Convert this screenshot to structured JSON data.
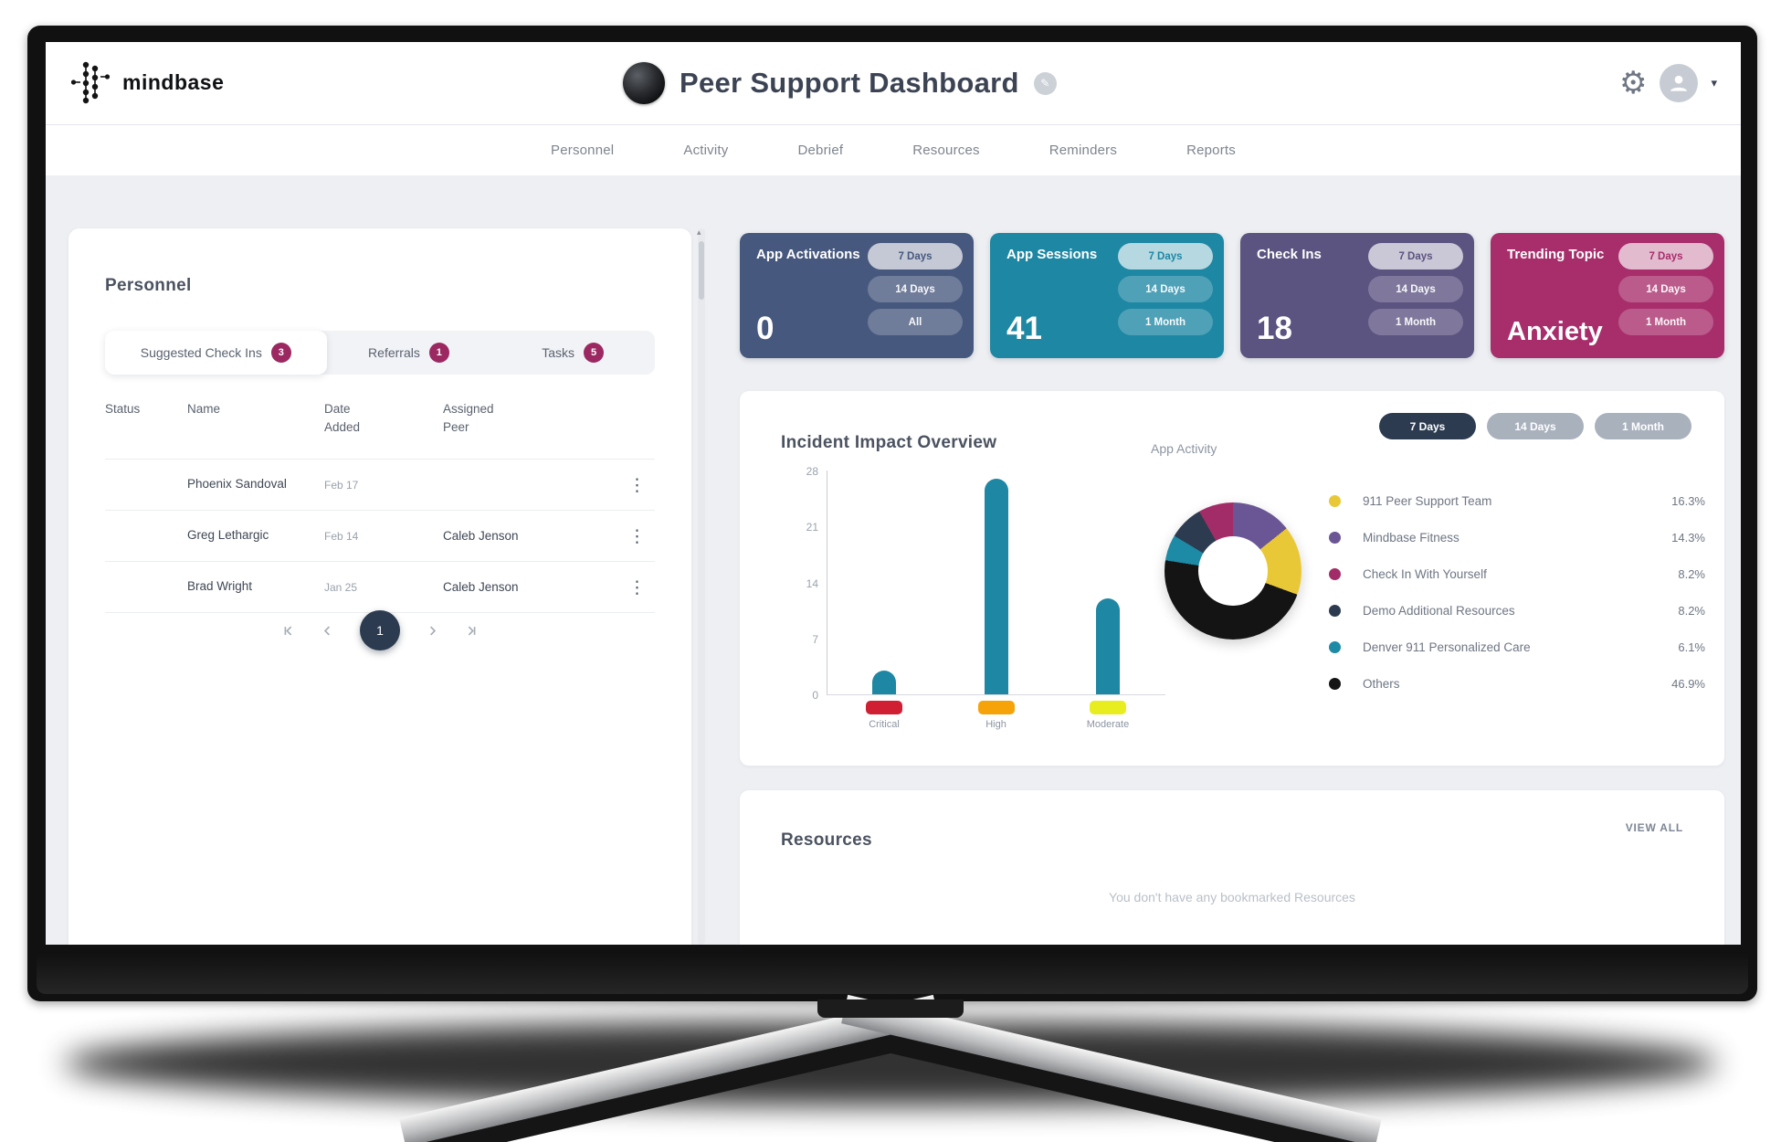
{
  "header": {
    "brand": "mindbase",
    "title": "Peer Support Dashboard"
  },
  "nav": {
    "items": [
      "Personnel",
      "Activity",
      "Debrief",
      "Resources",
      "Reminders",
      "Reports"
    ]
  },
  "icons": {
    "gear": "⚙",
    "caret": "▾",
    "edit": "✎",
    "kebab": "⋮",
    "scroll_up": "▴"
  },
  "colors": {
    "accent_magenta": "#9c2862",
    "teal": "#1e87a3",
    "dark_navy": "#2c3b4f",
    "status_yellow": "#e7c32e",
    "status_red": "#c92050"
  },
  "personnel": {
    "title": "Personnel",
    "tabs": [
      {
        "label": "Suggested Check Ins",
        "badge": "3",
        "active": true
      },
      {
        "label": "Referrals",
        "badge": "1",
        "active": false
      },
      {
        "label": "Tasks",
        "badge": "5",
        "active": false
      }
    ],
    "table": {
      "headers": [
        "Status",
        "Name",
        "Date\nAdded",
        "Assigned\nPeer"
      ],
      "rows": [
        {
          "status_color": "#e7c32e",
          "name": "Phoenix Sandoval",
          "date": "Feb 17",
          "peer": ""
        },
        {
          "status_color": "#c92050",
          "name": "Greg Lethargic",
          "date": "Feb 14",
          "peer": "Caleb Jenson"
        },
        {
          "status_color": "#c92050",
          "name": "Brad Wright",
          "date": "Jan 25",
          "peer": "Caleb Jenson"
        }
      ]
    },
    "pagination": {
      "current": "1"
    }
  },
  "stat_cards": [
    {
      "label": "App Activations",
      "value": "0",
      "bg": "#47587e",
      "filters": [
        "7 Days",
        "14 Days",
        "All"
      ],
      "active_filter": 0
    },
    {
      "label": "App Sessions",
      "value": "41",
      "bg": "#1e87a3",
      "filters": [
        "7 Days",
        "14 Days",
        "1 Month"
      ],
      "active_filter": 0
    },
    {
      "label": "Check Ins",
      "value": "18",
      "bg": "#5b5380",
      "filters": [
        "7 Days",
        "14 Days",
        "1 Month"
      ],
      "active_filter": 0
    },
    {
      "label": "Trending Topic",
      "value": "Anxiety",
      "bg": "#a72e6b",
      "filters": [
        "7 Days",
        "14 Days",
        "1 Month"
      ],
      "active_filter": 0
    }
  ],
  "incident": {
    "title": "Incident Impact Overview",
    "filters": [
      "7 Days",
      "14 Days",
      "1 Month"
    ],
    "active_filter": 0
  },
  "chart_data": [
    {
      "type": "bar",
      "title": "Incident Impact Overview",
      "categories": [
        "Critical",
        "High",
        "Moderate"
      ],
      "values": [
        3,
        27,
        12
      ],
      "bar_color": "#1e87a3",
      "marker_colors": [
        "#d01f33",
        "#f6a309",
        "#e8ed1f"
      ],
      "yticks": [
        0,
        7,
        14,
        21,
        28
      ],
      "ylim": [
        0,
        28
      ],
      "xlabel": "",
      "ylabel": "",
      "grid": false
    },
    {
      "type": "pie",
      "title": "App Activity",
      "legend_position": "right",
      "slices": [
        {
          "label": "911 Peer Support Team",
          "pct": 16.3,
          "display_pct": "16.3%",
          "color": "#e9c838"
        },
        {
          "label": "Mindbase Fitness",
          "pct": 14.3,
          "display_pct": "14.3%",
          "color": "#6a5694"
        },
        {
          "label": "Check In With Yourself",
          "pct": 8.2,
          "display_pct": "8.2%",
          "color": "#a22c67"
        },
        {
          "label": "Demo Additional Resources",
          "pct": 8.2,
          "display_pct": "8.2%",
          "color": "#2d3b50"
        },
        {
          "label": "Denver 911 Personalized Care",
          "pct": 6.1,
          "display_pct": "6.1%",
          "color": "#1d8aa6"
        },
        {
          "label": "Others",
          "pct": 46.9,
          "display_pct": "46.9%",
          "color": "#141414"
        }
      ],
      "order": [
        1,
        0,
        5,
        4,
        3,
        2
      ]
    }
  ],
  "resources": {
    "title": "Resources",
    "view_all": "VIEW ALL",
    "empty_message": "You don't have any bookmarked Resources"
  }
}
